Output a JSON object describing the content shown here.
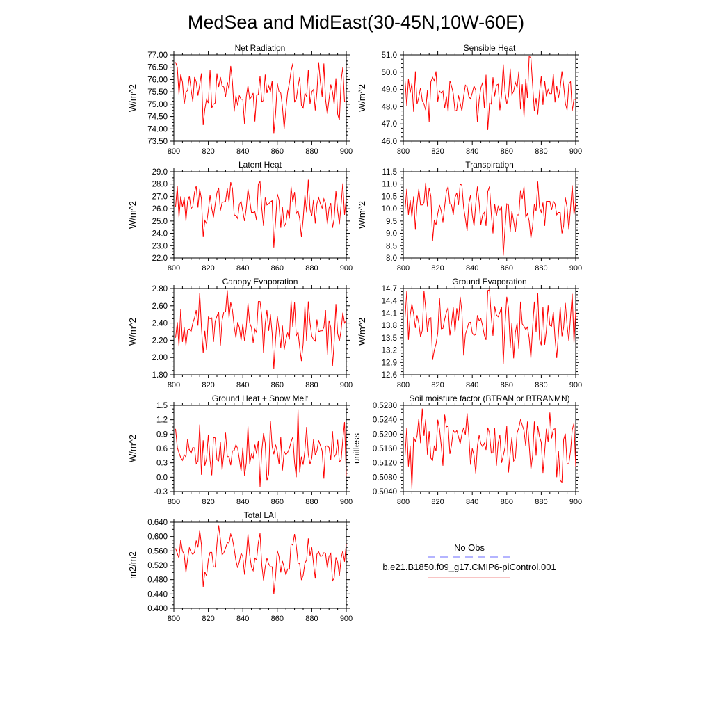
{
  "title": "MedSea and MidEast(30-45N,10W-60E)",
  "colors": {
    "model_line": "#ff0000",
    "obs_line": "#6a6aff",
    "legend_model_line": "#f4a0a0",
    "axis": "#000000"
  },
  "legend": {
    "position": "bottom-right",
    "entries": [
      {
        "label": "No Obs",
        "style": "dashed",
        "color": "#6a6aff"
      },
      {
        "label": "b.e21.B1850.f09_g17.CMIP6-piControl.001",
        "style": "solid",
        "color": "#f4a0a0"
      }
    ]
  },
  "chart_data": [
    {
      "type": "line",
      "title": "Net Radiation",
      "ylabel": "W/m^2",
      "xlim": [
        800,
        900
      ],
      "ylim": [
        73.5,
        77.0
      ],
      "xticks": [
        "800",
        "820",
        "840",
        "860",
        "880",
        "900"
      ],
      "yticks": [
        "73.50",
        "74.00",
        "74.50",
        "75.00",
        "75.50",
        "76.00",
        "76.50",
        "77.00"
      ],
      "x_start": 801,
      "values": [
        76.7,
        76.5,
        75.4,
        76.2,
        75.9,
        75.0,
        75.5,
        75.55,
        76.15,
        75.6,
        75.1,
        76.1,
        75.9,
        75.35,
        75.8,
        76.25,
        74.15,
        74.8,
        75.2,
        75.05,
        76.4,
        74.85,
        75.0,
        75.05,
        76.25,
        75.7,
        76.1,
        75.75,
        75.7,
        75.3,
        75.9,
        75.6,
        76.55,
        75.9,
        74.7,
        75.35,
        74.95,
        75.35,
        75.2,
        75.2,
        74.2,
        75.3,
        75.75,
        75.2,
        75.3,
        75.45,
        74.3,
        75.35,
        75.4,
        76.15,
        75.1,
        75.15,
        76.2,
        75.45,
        75.75,
        75.5,
        75.95,
        73.8,
        74.6,
        75.85,
        75.5,
        75.45,
        74.9,
        74.0,
        74.8,
        75.5,
        75.85,
        76.35,
        76.65,
        75.1,
        75.2,
        75.7,
        76.1,
        74.95,
        74.85,
        75.45,
        75.3,
        76.4,
        75.0,
        75.5,
        75.6,
        74.75,
        75.5,
        76.7,
        75.9,
        75.3,
        76.65,
        75.2,
        74.6,
        75.2,
        75.8,
        75.5,
        75.0,
        76.05,
        74.6,
        74.35,
        75.95,
        76.5,
        75.1,
        75.1
      ]
    },
    {
      "type": "line",
      "title": "Sensible Heat",
      "ylabel": "W/m^2",
      "xlim": [
        800,
        900
      ],
      "ylim": [
        46.0,
        51.0
      ],
      "xticks": [
        "800",
        "820",
        "840",
        "860",
        "880",
        "900"
      ],
      "yticks": [
        "46.0",
        "47.0",
        "48.0",
        "49.0",
        "50.0",
        "51.0"
      ],
      "x_start": 801,
      "values": [
        49.55,
        48.05,
        49.6,
        48.8,
        49.35,
        47.7,
        50.05,
        48.15,
        48.55,
        49.1,
        48.35,
        48.15,
        47.8,
        48.95,
        47.1,
        49.45,
        49.7,
        49.5,
        50.05,
        48.3,
        48.9,
        48.8,
        48.9,
        47.9,
        48.6,
        47.7,
        49.5,
        49.2,
        48.75,
        47.75,
        47.8,
        48.65,
        48.2,
        47.75,
        48.6,
        49.25,
        49.15,
        48.6,
        48.45,
        48.8,
        49.2,
        48.95,
        47.1,
        48.4,
        49.1,
        49.4,
        47.9,
        49.85,
        46.65,
        48.2,
        48.15,
        49.7,
        48.6,
        49.25,
        49.3,
        47.8,
        48.7,
        50.45,
        48.85,
        48.15,
        48.6,
        50.2,
        48.7,
        48.9,
        49.4,
        49.1,
        50.05,
        47.85,
        49.3,
        47.4,
        49.6,
        48.5,
        50.9,
        50.85,
        49.25,
        47.75,
        48.5,
        47.55,
        48.85,
        49.75,
        48.1,
        49.5,
        48.6,
        49.0,
        48.75,
        48.75,
        49.9,
        48.25,
        49.2,
        48.5,
        49.1,
        50.05,
        49.25,
        48.2,
        47.8,
        49.3,
        49.45,
        47.75,
        48.45,
        48.4
      ]
    },
    {
      "type": "line",
      "title": "Latent Heat",
      "ylabel": "W/m^2",
      "xlim": [
        800,
        900
      ],
      "ylim": [
        22.0,
        29.0
      ],
      "xticks": [
        "800",
        "820",
        "840",
        "860",
        "880",
        "900"
      ],
      "yticks": [
        "22.0",
        "23.0",
        "24.0",
        "25.0",
        "26.0",
        "27.0",
        "28.0",
        "29.0"
      ],
      "x_start": 801,
      "values": [
        26.15,
        27.85,
        25.3,
        27.0,
        26.15,
        26.9,
        25.0,
        26.6,
        27.0,
        26.0,
        26.2,
        27.35,
        27.85,
        26.1,
        27.6,
        26.8,
        23.7,
        25.05,
        24.8,
        25.85,
        27.1,
        26.0,
        25.3,
        26.35,
        27.3,
        27.7,
        25.85,
        26.5,
        26.55,
        26.6,
        27.65,
        26.55,
        28.15,
        27.65,
        25.5,
        25.45,
        25.2,
        26.35,
        26.6,
        25.8,
        25.0,
        26.05,
        27.6,
        26.7,
        25.7,
        25.7,
        25.75,
        25.05,
        28.0,
        28.2,
        26.0,
        24.6,
        26.9,
        26.3,
        26.4,
        26.55,
        26.65,
        22.85,
        24.95,
        27.2,
        26.7,
        24.45,
        26.15,
        24.55,
        24.85,
        25.9,
        25.2,
        27.8,
        26.55,
        27.35,
        25.6,
        25.85,
        25.2,
        23.7,
        25.15,
        27.15,
        25.7,
        28.35,
        25.95,
        25.4,
        26.75,
        24.8,
        26.4,
        26.9,
        26.4,
        26.05,
        26.8,
        26.45,
        24.75,
        26.05,
        26.45,
        24.45,
        25.2,
        27.45,
        25.85,
        24.75,
        26.35,
        28.05,
        25.5,
        26.8
      ]
    },
    {
      "type": "line",
      "title": "Transpiration",
      "ylabel": "W/m^2",
      "xlim": [
        800,
        900
      ],
      "ylim": [
        8.0,
        11.5
      ],
      "xticks": [
        "800",
        "820",
        "840",
        "860",
        "880",
        "900"
      ],
      "yticks": [
        "8.0",
        "8.5",
        "9.0",
        "9.5",
        "10.0",
        "10.5",
        "11.0",
        "11.5"
      ],
      "x_start": 801,
      "values": [
        9.95,
        10.8,
        9.75,
        10.35,
        9.65,
        10.5,
        9.15,
        10.2,
        10.8,
        10.15,
        10.15,
        10.25,
        11.05,
        10.1,
        10.85,
        10.5,
        8.7,
        9.55,
        9.35,
        9.8,
        10.15,
        9.9,
        9.45,
        10.1,
        10.7,
        10.9,
        10.2,
        10.15,
        9.75,
        10.45,
        10.65,
        10.15,
        11.0,
        10.95,
        10.05,
        9.6,
        9.1,
        10.2,
        10.55,
        9.75,
        9.3,
        10.2,
        10.9,
        10.25,
        9.35,
        9.75,
        9.85,
        9.3,
        10.7,
        10.9,
        9.8,
        9.0,
        10.2,
        9.7,
        10.1,
        9.95,
        10.1,
        8.1,
        9.2,
        10.2,
        10.15,
        9.05,
        9.9,
        9.5,
        9.05,
        9.75,
        9.75,
        10.75,
        10.4,
        10.9,
        9.65,
        9.8,
        9.5,
        8.8,
        9.3,
        10.2,
        9.9,
        11.1,
        10.05,
        9.85,
        10.25,
        9.3,
        10.3,
        10.3,
        10.3,
        9.95,
        10.3,
        10.2,
        9.75,
        9.85,
        9.85,
        9.0,
        9.3,
        10.45,
        10.05,
        9.15,
        10.05,
        10.95,
        9.75,
        10.25
      ]
    },
    {
      "type": "line",
      "title": "Canopy Evaporation",
      "ylabel": "W/m^2",
      "xlim": [
        800,
        900
      ],
      "ylim": [
        1.8,
        2.8
      ],
      "xticks": [
        "800",
        "820",
        "840",
        "860",
        "880",
        "900"
      ],
      "yticks": [
        "1.80",
        "2.00",
        "2.20",
        "2.40",
        "2.60",
        "2.80"
      ],
      "x_start": 801,
      "values": [
        2.23,
        2.41,
        2.13,
        2.56,
        2.18,
        2.35,
        2.14,
        2.32,
        2.33,
        2.3,
        2.4,
        2.46,
        2.55,
        2.37,
        2.75,
        2.35,
        2.05,
        2.31,
        2.09,
        2.47,
        2.45,
        2.46,
        2.18,
        2.42,
        2.48,
        2.53,
        2.14,
        2.43,
        2.53,
        2.53,
        2.78,
        2.46,
        2.64,
        2.55,
        2.36,
        2.23,
        2.41,
        2.35,
        2.2,
        2.39,
        2.19,
        2.35,
        2.63,
        2.4,
        2.35,
        2.17,
        2.33,
        2.29,
        2.65,
        2.65,
        2.48,
        2.05,
        2.39,
        2.55,
        2.31,
        2.5,
        2.28,
        1.87,
        2.21,
        2.48,
        2.33,
        2.11,
        2.37,
        2.09,
        2.21,
        2.29,
        2.21,
        2.66,
        2.35,
        2.64,
        2.25,
        2.3,
        2.12,
        1.96,
        2.16,
        2.6,
        2.19,
        2.65,
        2.4,
        2.25,
        2.21,
        2.19,
        2.44,
        2.3,
        2.31,
        2.31,
        2.35,
        2.55,
        2.03,
        2.43,
        2.35,
        1.9,
        2.18,
        2.62,
        2.28,
        2.19,
        2.32,
        2.52,
        2.4,
        2.43
      ]
    },
    {
      "type": "line",
      "title": "Ground Evaporation",
      "ylabel": "W/m^2",
      "xlim": [
        800,
        900
      ],
      "ylim": [
        12.6,
        14.7
      ],
      "xticks": [
        "800",
        "820",
        "840",
        "860",
        "880",
        "900"
      ],
      "yticks": [
        "12.6",
        "12.9",
        "13.2",
        "13.5",
        "13.8",
        "14.1",
        "14.4",
        "14.7"
      ],
      "x_start": 801,
      "values": [
        13.98,
        14.64,
        13.45,
        14.05,
        14.33,
        14.08,
        13.74,
        14.05,
        13.85,
        13.52,
        13.68,
        14.64,
        14.22,
        13.64,
        13.96,
        13.99,
        12.96,
        13.2,
        13.35,
        13.62,
        14.48,
        13.72,
        13.73,
        13.95,
        14.12,
        14.24,
        13.56,
        13.85,
        14.24,
        13.64,
        14.22,
        13.93,
        14.5,
        14.14,
        13.07,
        13.58,
        13.72,
        13.87,
        13.88,
        13.62,
        13.56,
        13.58,
        14.05,
        13.92,
        13.97,
        13.79,
        13.56,
        13.45,
        14.65,
        14.67,
        14.02,
        13.55,
        14.27,
        14.06,
        14.01,
        14.12,
        14.26,
        12.87,
        13.8,
        14.5,
        14.22,
        13.26,
        13.87,
        13.0,
        13.63,
        13.86,
        13.23,
        14.38,
        13.84,
        13.78,
        13.7,
        13.76,
        13.5,
        13.0,
        13.75,
        14.38,
        13.64,
        14.59,
        13.46,
        13.32,
        14.26,
        13.33,
        13.68,
        14.29,
        13.8,
        13.78,
        14.14,
        13.5,
        13.01,
        13.6,
        14.26,
        13.54,
        13.75,
        14.35,
        13.8,
        13.43,
        14.02,
        14.57,
        13.37,
        14.15
      ]
    },
    {
      "type": "line",
      "title": "Ground Heat + Snow Melt",
      "ylabel": "W/m^2",
      "xlim": [
        800,
        900
      ],
      "ylim": [
        -0.3,
        1.5
      ],
      "xticks": [
        "800",
        "820",
        "840",
        "860",
        "880",
        "900"
      ],
      "yticks": [
        "-0.3",
        "0.0",
        "0.3",
        "0.6",
        "0.9",
        "1.2",
        "1.5"
      ],
      "x_start": 801,
      "values": [
        1.01,
        0.62,
        0.51,
        0.41,
        0.35,
        0.47,
        0.42,
        0.8,
        0.57,
        0.5,
        0.62,
        0.61,
        0.28,
        0.33,
        1.1,
        0.05,
        0.77,
        0.24,
        0.39,
        0.89,
        0.35,
        0.04,
        0.83,
        0.82,
        0.36,
        0.34,
        0.74,
        0.15,
        0.49,
        0.93,
        0.43,
        0.43,
        0.25,
        0.55,
        0.56,
        0.68,
        0.6,
        0.38,
        0.12,
        0.62,
        0.03,
        0.3,
        1.06,
        0.28,
        0.48,
        0.4,
        0.68,
        0.49,
        0.76,
        -0.2,
        0.55,
        0.92,
        0.71,
        -0.07,
        0.06,
        1.18,
        0.64,
        0.48,
        0.68,
        0.53,
        0.27,
        0.84,
        0.14,
        0.54,
        0.47,
        0.52,
        0.6,
        0.74,
        0.84,
        0.31,
        0.0,
        1.42,
        0.1,
        0.43,
        0.26,
        0.56,
        1.05,
        0.48,
        0.27,
        0.4,
        0.79,
        0.46,
        0.55,
        0.77,
        0.66,
        0.55,
        -0.03,
        0.64,
        0.66,
        0.62,
        0.36,
        0.96,
        0.42,
        0.48,
        0.78,
        0.32,
        0.36,
        0.78,
        1.15,
        0.02
      ]
    },
    {
      "type": "line",
      "title": "Soil moisture factor (BTRAN or BTRANMN)",
      "ylabel": "unitless",
      "xlim": [
        800,
        900
      ],
      "ylim": [
        0.504,
        0.528
      ],
      "xticks": [
        "800",
        "820",
        "840",
        "860",
        "880",
        "900"
      ],
      "yticks": [
        "0.5040",
        "0.5080",
        "0.5120",
        "0.5160",
        "0.5200",
        "0.5240",
        "0.5280"
      ],
      "x_start": 801,
      "values": [
        0.5138,
        0.5218,
        0.511,
        0.5168,
        0.5048,
        0.5192,
        0.518,
        0.5195,
        0.5243,
        0.5175,
        0.5271,
        0.5195,
        0.5241,
        0.5143,
        0.5208,
        0.5133,
        0.5127,
        0.5168,
        0.5153,
        0.524,
        0.5214,
        0.5168,
        0.5112,
        0.5254,
        0.522,
        0.5222,
        0.5145,
        0.517,
        0.5211,
        0.5203,
        0.521,
        0.5193,
        0.5173,
        0.52,
        0.5218,
        0.5198,
        0.5258,
        0.5198,
        0.5115,
        0.516,
        0.5141,
        0.5091,
        0.5167,
        0.5197,
        0.5173,
        0.5165,
        0.5175,
        0.5156,
        0.5218,
        0.5203,
        0.5147,
        0.5148,
        0.5218,
        0.5112,
        0.5175,
        0.5198,
        0.512,
        0.514,
        0.5163,
        0.5223,
        0.5093,
        0.5147,
        0.5191,
        0.5125,
        0.5133,
        0.5203,
        0.5218,
        0.524,
        0.5225,
        0.521,
        0.5167,
        0.5235,
        0.5171,
        0.5102,
        0.514,
        0.5235,
        0.514,
        0.5223,
        0.5193,
        0.5178,
        0.5092,
        0.5152,
        0.5215,
        0.5178,
        0.526,
        0.5188,
        0.5213,
        0.5215,
        0.508,
        0.5153,
        0.5071,
        0.5066,
        0.5185,
        0.5201,
        0.5118,
        0.5117,
        0.5153,
        0.5212,
        0.523,
        0.511
      ]
    },
    {
      "type": "line",
      "title": "Total LAI",
      "ylabel": "m2/m2",
      "xlim": [
        800,
        900
      ],
      "ylim": [
        0.4,
        0.64
      ],
      "xticks": [
        "800",
        "820",
        "840",
        "860",
        "880",
        "900"
      ],
      "yticks": [
        "0.400",
        "0.440",
        "0.480",
        "0.520",
        "0.560",
        "0.600",
        "0.640"
      ],
      "x_start": 801,
      "values": [
        0.567,
        0.553,
        0.54,
        0.591,
        0.56,
        0.55,
        0.5,
        0.537,
        0.569,
        0.556,
        0.55,
        0.557,
        0.589,
        0.57,
        0.618,
        0.577,
        0.46,
        0.502,
        0.49,
        0.536,
        0.556,
        0.556,
        0.516,
        0.515,
        0.58,
        0.631,
        0.592,
        0.549,
        0.555,
        0.568,
        0.583,
        0.582,
        0.607,
        0.593,
        0.566,
        0.533,
        0.513,
        0.53,
        0.554,
        0.544,
        0.494,
        0.545,
        0.607,
        0.549,
        0.515,
        0.505,
        0.54,
        0.535,
        0.583,
        0.609,
        0.521,
        0.478,
        0.515,
        0.54,
        0.524,
        0.516,
        0.516,
        0.439,
        0.489,
        0.561,
        0.544,
        0.5,
        0.532,
        0.514,
        0.493,
        0.51,
        0.509,
        0.58,
        0.576,
        0.607,
        0.574,
        0.527,
        0.524,
        0.479,
        0.492,
        0.526,
        0.535,
        0.595,
        0.547,
        0.57,
        0.524,
        0.483,
        0.551,
        0.558,
        0.545,
        0.546,
        0.555,
        0.553,
        0.512,
        0.545,
        0.553,
        0.477,
        0.484,
        0.542,
        0.529,
        0.491,
        0.54,
        0.56,
        0.53,
        0.58
      ]
    }
  ]
}
